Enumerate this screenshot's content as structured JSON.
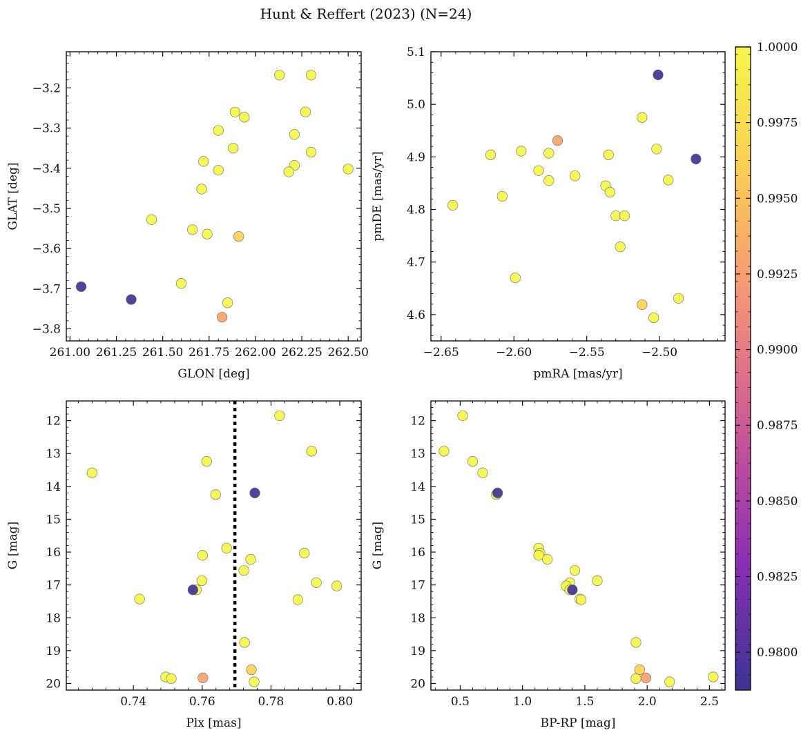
{
  "title": "Hunt & Reffert (2023) (N=24)",
  "colorbar": {
    "min": 0.97875,
    "max": 1.0,
    "colors": [
      "#3a3593",
      "#8a2fb3",
      "#c95796",
      "#f2917a",
      "#fbcb55",
      "#f4f64c"
    ],
    "tick_values": [
      0.98,
      0.9825,
      0.985,
      0.9875,
      0.99,
      0.9925,
      0.995,
      0.9975,
      1.0
    ],
    "tick_labels": [
      "0.9800",
      "0.9825",
      "0.9850",
      "0.9875",
      "0.9900",
      "0.9925",
      "0.9950",
      "0.9975",
      "1.0000"
    ]
  },
  "chart_data": [
    {
      "type": "scatter",
      "id": "glon-glat",
      "xlabel": "GLON [deg]",
      "ylabel": "GLAT [deg]",
      "xlim": [
        260.98,
        262.57
      ],
      "ylim": [
        -3.83,
        -3.11
      ],
      "invert_y": false,
      "xticks": [
        261.0,
        261.25,
        261.5,
        261.75,
        262.0,
        262.25,
        262.5
      ],
      "xtick_labels": [
        "261.00",
        "261.25",
        "261.50",
        "261.75",
        "262.00",
        "262.25",
        "262.50"
      ],
      "yticks": [
        -3.2,
        -3.3,
        -3.4,
        -3.5,
        -3.6,
        -3.7,
        -3.8
      ],
      "ytick_labels": [
        "−3.2",
        "−3.3",
        "−3.4",
        "−3.5",
        "−3.6",
        "−3.7",
        "−3.8"
      ],
      "points": [
        {
          "x": 262.13,
          "y": -3.168,
          "c": 1.0
        },
        {
          "x": 262.3,
          "y": -3.168,
          "c": 1.0
        },
        {
          "x": 261.89,
          "y": -3.26,
          "c": 1.0
        },
        {
          "x": 261.94,
          "y": -3.273,
          "c": 1.0
        },
        {
          "x": 262.27,
          "y": -3.26,
          "c": 1.0
        },
        {
          "x": 261.8,
          "y": -3.306,
          "c": 1.0
        },
        {
          "x": 262.21,
          "y": -3.316,
          "c": 1.0
        },
        {
          "x": 261.88,
          "y": -3.35,
          "c": 1.0
        },
        {
          "x": 262.3,
          "y": -3.36,
          "c": 1.0
        },
        {
          "x": 261.72,
          "y": -3.383,
          "c": 1.0
        },
        {
          "x": 261.8,
          "y": -3.405,
          "c": 1.0
        },
        {
          "x": 262.21,
          "y": -3.393,
          "c": 1.0
        },
        {
          "x": 262.18,
          "y": -3.409,
          "c": 1.0
        },
        {
          "x": 262.5,
          "y": -3.402,
          "c": 1.0
        },
        {
          "x": 261.71,
          "y": -3.452,
          "c": 1.0
        },
        {
          "x": 261.44,
          "y": -3.528,
          "c": 1.0
        },
        {
          "x": 261.66,
          "y": -3.553,
          "c": 1.0
        },
        {
          "x": 261.74,
          "y": -3.564,
          "c": 1.0
        },
        {
          "x": 261.91,
          "y": -3.57,
          "c": 0.9965
        },
        {
          "x": 261.6,
          "y": -3.687,
          "c": 1.0
        },
        {
          "x": 261.06,
          "y": -3.695,
          "c": 0.9793
        },
        {
          "x": 261.33,
          "y": -3.727,
          "c": 0.9793
        },
        {
          "x": 261.85,
          "y": -3.735,
          "c": 1.0
        },
        {
          "x": 261.82,
          "y": -3.771,
          "c": 0.993
        }
      ]
    },
    {
      "type": "scatter",
      "id": "pmra-pmde",
      "xlabel": "pmRA [mas/yr]",
      "ylabel": "pmDE [mas/yr]",
      "xlim": [
        -2.657,
        -2.455
      ],
      "ylim": [
        4.55,
        5.1
      ],
      "invert_y": false,
      "xticks": [
        -2.65,
        -2.6,
        -2.55,
        -2.5
      ],
      "xtick_labels": [
        "−2.65",
        "−2.60",
        "−2.55",
        "−2.50"
      ],
      "yticks": [
        4.6,
        4.7,
        4.8,
        4.9,
        5.0,
        5.1
      ],
      "ytick_labels": [
        "4.6",
        "4.7",
        "4.8",
        "4.9",
        "5.0",
        "5.1"
      ],
      "points": [
        {
          "x": -2.501,
          "y": 5.056,
          "c": 0.9793
        },
        {
          "x": -2.512,
          "y": 4.975,
          "c": 1.0
        },
        {
          "x": -2.57,
          "y": 4.931,
          "c": 0.993
        },
        {
          "x": -2.502,
          "y": 4.915,
          "c": 1.0
        },
        {
          "x": -2.595,
          "y": 4.911,
          "c": 1.0
        },
        {
          "x": -2.576,
          "y": 4.907,
          "c": 1.0
        },
        {
          "x": -2.616,
          "y": 4.904,
          "c": 1.0
        },
        {
          "x": -2.535,
          "y": 4.904,
          "c": 1.0
        },
        {
          "x": -2.475,
          "y": 4.896,
          "c": 0.9793
        },
        {
          "x": -2.583,
          "y": 4.874,
          "c": 1.0
        },
        {
          "x": -2.558,
          "y": 4.864,
          "c": 1.0
        },
        {
          "x": -2.576,
          "y": 4.855,
          "c": 1.0
        },
        {
          "x": -2.494,
          "y": 4.856,
          "c": 1.0
        },
        {
          "x": -2.537,
          "y": 4.845,
          "c": 1.0
        },
        {
          "x": -2.534,
          "y": 4.833,
          "c": 1.0
        },
        {
          "x": -2.608,
          "y": 4.825,
          "c": 1.0
        },
        {
          "x": -2.642,
          "y": 4.808,
          "c": 1.0
        },
        {
          "x": -2.53,
          "y": 4.788,
          "c": 1.0
        },
        {
          "x": -2.524,
          "y": 4.788,
          "c": 1.0
        },
        {
          "x": -2.527,
          "y": 4.729,
          "c": 1.0
        },
        {
          "x": -2.599,
          "y": 4.67,
          "c": 1.0
        },
        {
          "x": -2.487,
          "y": 4.631,
          "c": 1.0
        },
        {
          "x": -2.512,
          "y": 4.619,
          "c": 0.9965
        },
        {
          "x": -2.504,
          "y": 4.594,
          "c": 1.0
        }
      ]
    },
    {
      "type": "scatter",
      "id": "plx-g",
      "xlabel": "Plx [mas]",
      "ylabel": "G [mag]",
      "xlim": [
        0.7205,
        0.8062
      ],
      "ylim": [
        20.2,
        11.4
      ],
      "invert_y": true,
      "vline": 0.7695,
      "xticks": [
        0.74,
        0.76,
        0.78,
        0.8
      ],
      "xtick_labels": [
        "0.74",
        "0.76",
        "0.78",
        "0.80"
      ],
      "yticks": [
        12,
        13,
        14,
        15,
        16,
        17,
        18,
        19,
        20
      ],
      "ytick_labels": [
        "12",
        "13",
        "14",
        "15",
        "16",
        "17",
        "18",
        "19",
        "20"
      ],
      "points": [
        {
          "x": 0.7825,
          "y": 11.85,
          "c": 1.0
        },
        {
          "x": 0.7918,
          "y": 12.93,
          "c": 1.0
        },
        {
          "x": 0.7613,
          "y": 13.24,
          "c": 1.0
        },
        {
          "x": 0.728,
          "y": 13.59,
          "c": 1.0
        },
        {
          "x": 0.7639,
          "y": 14.25,
          "c": 1.0
        },
        {
          "x": 0.7753,
          "y": 14.2,
          "c": 0.9793
        },
        {
          "x": 0.7671,
          "y": 15.88,
          "c": 1.0
        },
        {
          "x": 0.7897,
          "y": 16.03,
          "c": 1.0
        },
        {
          "x": 0.7601,
          "y": 16.1,
          "c": 1.0
        },
        {
          "x": 0.7741,
          "y": 16.22,
          "c": 1.0
        },
        {
          "x": 0.7721,
          "y": 16.56,
          "c": 1.0
        },
        {
          "x": 0.7599,
          "y": 16.87,
          "c": 1.0
        },
        {
          "x": 0.7932,
          "y": 16.93,
          "c": 1.0
        },
        {
          "x": 0.7991,
          "y": 17.03,
          "c": 1.0
        },
        {
          "x": 0.7573,
          "y": 17.15,
          "c": 0.9793
        },
        {
          "x": 0.7583,
          "y": 17.15,
          "c": 1.0
        },
        {
          "x": 0.7418,
          "y": 17.43,
          "c": 1.0
        },
        {
          "x": 0.7878,
          "y": 17.45,
          "c": 1.0
        },
        {
          "x": 0.7723,
          "y": 18.75,
          "c": 1.0
        },
        {
          "x": 0.7743,
          "y": 19.58,
          "c": 0.9965
        },
        {
          "x": 0.7494,
          "y": 19.8,
          "c": 1.0
        },
        {
          "x": 0.751,
          "y": 19.85,
          "c": 1.0
        },
        {
          "x": 0.7602,
          "y": 19.83,
          "c": 0.993
        },
        {
          "x": 0.7751,
          "y": 19.95,
          "c": 1.0
        }
      ]
    },
    {
      "type": "scatter",
      "id": "bprp-g",
      "xlabel": "BP-RP [mag]",
      "ylabel": "G [mag]",
      "xlim": [
        0.265,
        2.625
      ],
      "ylim": [
        20.2,
        11.4
      ],
      "invert_y": true,
      "xticks": [
        0.5,
        1.0,
        1.5,
        2.0,
        2.5
      ],
      "xtick_labels": [
        "0.5",
        "1.0",
        "1.5",
        "2.0",
        "2.5"
      ],
      "yticks": [
        12,
        13,
        14,
        15,
        16,
        17,
        18,
        19,
        20
      ],
      "ytick_labels": [
        "12",
        "13",
        "14",
        "15",
        "16",
        "17",
        "18",
        "19",
        "20"
      ],
      "points": [
        {
          "x": 0.52,
          "y": 11.85,
          "c": 1.0
        },
        {
          "x": 0.37,
          "y": 12.93,
          "c": 1.0
        },
        {
          "x": 0.6,
          "y": 13.24,
          "c": 1.0
        },
        {
          "x": 0.68,
          "y": 13.59,
          "c": 1.0
        },
        {
          "x": 0.8,
          "y": 14.2,
          "c": 0.9793
        },
        {
          "x": 0.79,
          "y": 14.25,
          "c": 1.0
        },
        {
          "x": 1.13,
          "y": 15.88,
          "c": 1.0
        },
        {
          "x": 1.14,
          "y": 16.03,
          "c": 1.0
        },
        {
          "x": 1.13,
          "y": 16.1,
          "c": 1.0
        },
        {
          "x": 1.2,
          "y": 16.22,
          "c": 1.0
        },
        {
          "x": 1.42,
          "y": 16.56,
          "c": 1.0
        },
        {
          "x": 1.6,
          "y": 16.87,
          "c": 1.0
        },
        {
          "x": 1.38,
          "y": 16.93,
          "c": 1.0
        },
        {
          "x": 1.35,
          "y": 17.03,
          "c": 1.0
        },
        {
          "x": 1.4,
          "y": 17.15,
          "c": 0.9793
        },
        {
          "x": 1.38,
          "y": 17.15,
          "c": 1.0
        },
        {
          "x": 1.46,
          "y": 17.43,
          "c": 1.0
        },
        {
          "x": 1.47,
          "y": 17.45,
          "c": 1.0
        },
        {
          "x": 1.91,
          "y": 18.75,
          "c": 1.0
        },
        {
          "x": 1.94,
          "y": 19.58,
          "c": 0.9965
        },
        {
          "x": 1.91,
          "y": 19.85,
          "c": 1.0
        },
        {
          "x": 1.99,
          "y": 19.83,
          "c": 0.993
        },
        {
          "x": 2.53,
          "y": 19.8,
          "c": 1.0
        },
        {
          "x": 2.18,
          "y": 19.95,
          "c": 1.0
        }
      ]
    }
  ]
}
